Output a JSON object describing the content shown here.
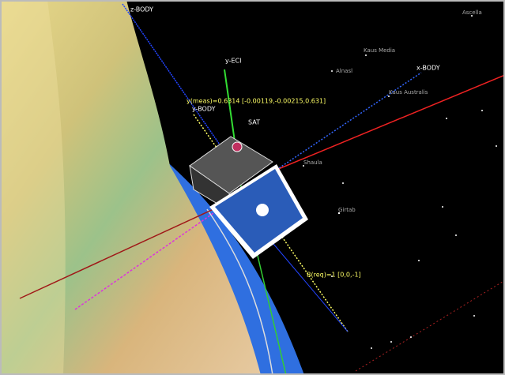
{
  "labels": {
    "z_body": "z-BODY",
    "y_eci": "y-ECI",
    "x_body": "x-BODY",
    "y_body": "y-BODY",
    "y_meas": "y(meas)=0.6314 [-0.00119,-0.00215,0.631]",
    "sat": "SAT",
    "b_req": "B(req)=1 [0,0,-1]"
  },
  "stars": [
    "Ascella",
    "Kaus Media",
    "Alnasl",
    "Kaus Australis",
    "Shaula",
    "Girtab"
  ]
}
